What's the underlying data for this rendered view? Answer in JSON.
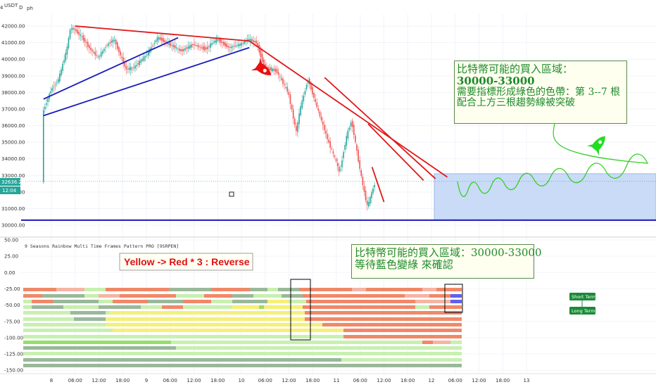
{
  "header": {
    "symbol": "USDT",
    "axis_symbol_fragment": "4",
    "label_d": "D",
    "label_ph": "ph"
  },
  "price_pane": {
    "price_ticks": [
      "42000.00",
      "41000.00",
      "40000.00",
      "39000.00",
      "38000.00",
      "37000.00",
      "36000.00",
      "35000.00",
      "34000.00",
      "33000.00",
      "32000.00",
      "31000.00",
      "30000.00"
    ],
    "last_price": "32636.25",
    "countdown": "12:04",
    "colors": {
      "up": "#26a69a",
      "down": "#ef5350",
      "trend_red": "#e01818",
      "trend_blue": "#1a1ab8",
      "zone": "#c9dbf7",
      "projection": "#2ecc1a"
    },
    "annotation": {
      "line1": "比特幣可能的買入區域：",
      "line2": "30000-33000",
      "line3": "需要指標形成綠色的色帶：第 3--7 根",
      "line4": "配合上方三根趨勢線被突破"
    }
  },
  "indicator_pane": {
    "title": "9 Seasons Rainbow Multi Time Frames Pattern PRO [9SRPEN]",
    "ticks": [
      "50.00",
      "25.00",
      "0.00",
      "-25.00",
      "-50.00",
      "-75.00",
      "-100.00",
      "-125.00",
      "-150.00"
    ],
    "reverse_label": "Yellow -> Red * 3 : Reverse",
    "annotation": {
      "line1": "比特幣可能的買入區域：30000-33000",
      "line2": "等待藍色變綠 來確認"
    },
    "short_term_label": "Short Term",
    "long_term_label": "Long Term",
    "colors": {
      "red": "#f08868",
      "pink": "#f5b5a5",
      "light_green": "#c8f0b0",
      "gray_green": "#9ab89a",
      "green": "#96de6a",
      "yellow": "#f5f078",
      "blue": "#6060ee",
      "badge": "#1a8a38"
    }
  },
  "time_axis": {
    "labels": [
      "8",
      "06:00",
      "12:00",
      "18:00",
      "9",
      "06:00",
      "12:00",
      "18:00",
      "10",
      "06:00",
      "12:00",
      "18:00",
      "11",
      "06:00",
      "12:00",
      "18:00",
      "12",
      "06:00",
      "12:00",
      "18:00",
      "13"
    ]
  },
  "chart_data": [
    {
      "type": "candlestick",
      "title": "",
      "symbol": "USDT",
      "ylim": [
        29800,
        42400
      ],
      "last_price": 32636.25,
      "x": [
        "8",
        "06:00",
        "12:00",
        "18:00",
        "9",
        "06:00",
        "12:00",
        "18:00",
        "10",
        "06:00",
        "12:00",
        "18:00",
        "11",
        "06:00",
        "12:00",
        "18:00",
        "12",
        "06:00",
        "12:00",
        "18:00",
        "13"
      ],
      "price_path": [
        {
          "x": "7 22:00",
          "y": 36800
        },
        {
          "x": "8 00:00",
          "y": 38100
        },
        {
          "x": "8 02:00",
          "y": 38800
        },
        {
          "x": "8 04:00",
          "y": 40500
        },
        {
          "x": "8 05:00",
          "y": 41900
        },
        {
          "x": "8 06:00",
          "y": 41800
        },
        {
          "x": "8 08:00",
          "y": 41300
        },
        {
          "x": "8 10:00",
          "y": 40600
        },
        {
          "x": "8 12:00",
          "y": 40100
        },
        {
          "x": "8 14:00",
          "y": 40800
        },
        {
          "x": "8 16:00",
          "y": 41200
        },
        {
          "x": "8 19:00",
          "y": 39400
        },
        {
          "x": "8 21:00",
          "y": 39500
        },
        {
          "x": "9 00:00",
          "y": 40200
        },
        {
          "x": "9 03:00",
          "y": 41300
        },
        {
          "x": "9 06:00",
          "y": 40900
        },
        {
          "x": "9 09:00",
          "y": 40500
        },
        {
          "x": "9 12:00",
          "y": 40900
        },
        {
          "x": "9 15:00",
          "y": 40600
        },
        {
          "x": "9 18:00",
          "y": 41200
        },
        {
          "x": "9 21:00",
          "y": 40700
        },
        {
          "x": "10 00:00",
          "y": 40900
        },
        {
          "x": "10 02:00",
          "y": 41200
        },
        {
          "x": "10 04:00",
          "y": 41000
        },
        {
          "x": "10 06:00",
          "y": 39500
        },
        {
          "x": "10 09:00",
          "y": 39300
        },
        {
          "x": "10 12:00",
          "y": 38000
        },
        {
          "x": "10 14:00",
          "y": 35600
        },
        {
          "x": "10 15:00",
          "y": 37000
        },
        {
          "x": "10 17:00",
          "y": 38800
        },
        {
          "x": "10 19:00",
          "y": 37300
        },
        {
          "x": "10 22:00",
          "y": 35100
        },
        {
          "x": "11 00:00",
          "y": 33900
        },
        {
          "x": "11 01:00",
          "y": 33100
        },
        {
          "x": "11 02:00",
          "y": 34500
        },
        {
          "x": "11 03:00",
          "y": 35600
        },
        {
          "x": "11 04:00",
          "y": 36300
        },
        {
          "x": "11 05:00",
          "y": 34900
        },
        {
          "x": "11 06:00",
          "y": 33500
        },
        {
          "x": "11 07:00",
          "y": 32200
        },
        {
          "x": "11 08:00",
          "y": 31100
        },
        {
          "x": "11 09:00",
          "y": 31900
        },
        {
          "x": "11 10:00",
          "y": 32600
        }
      ],
      "trend_lines_red": [
        [
          {
            "x": "8 06:00",
            "y": 42000
          },
          {
            "x": "10 02:00",
            "y": 41100
          }
        ],
        [
          {
            "x": "10 02:00",
            "y": 41100
          },
          {
            "x": "12 04:00",
            "y": 32900
          }
        ],
        [
          {
            "x": "10 21:00",
            "y": 38900
          },
          {
            "x": "12 01:00",
            "y": 32800
          }
        ],
        [
          {
            "x": "11 08:00",
            "y": 36100
          },
          {
            "x": "11 22:00",
            "y": 32700
          }
        ],
        [
          {
            "x": "11 09:00",
            "y": 33500
          },
          {
            "x": "11 12:00",
            "y": 31400
          }
        ]
      ],
      "trend_lines_blue": [
        [
          {
            "x": "7 22:00",
            "y": 36600
          },
          {
            "x": "10 02:00",
            "y": 40700
          }
        ],
        [
          {
            "x": "7 22:00",
            "y": 37600
          },
          {
            "x": "9 08:00",
            "y": 41300
          }
        ]
      ],
      "support_line": 30300,
      "buy_zone": [
        30300,
        33100
      ],
      "annotations": [
        "比特幣可能的買入區域：",
        "30000-33000",
        "需要指標形成綠色的色帶：第 3--7 根",
        "配合上方三根趨勢線被突破"
      ]
    },
    {
      "type": "heatmap",
      "title": "9 Seasons Rainbow Multi Time Frames Pattern PRO [9SRPEN]",
      "ylim": [
        -150,
        50
      ],
      "row_levels": [
        -25,
        -35,
        -45,
        -55,
        -65,
        -75,
        -85,
        -95,
        -105,
        -115,
        -125,
        -135
      ],
      "annotations": [
        "Yellow -> Red * 3 : Reverse",
        "比特幣可能的買入區域：30000-33000",
        "等待藍色變綠 來確認",
        "Short Term",
        "Long Term"
      ]
    }
  ]
}
